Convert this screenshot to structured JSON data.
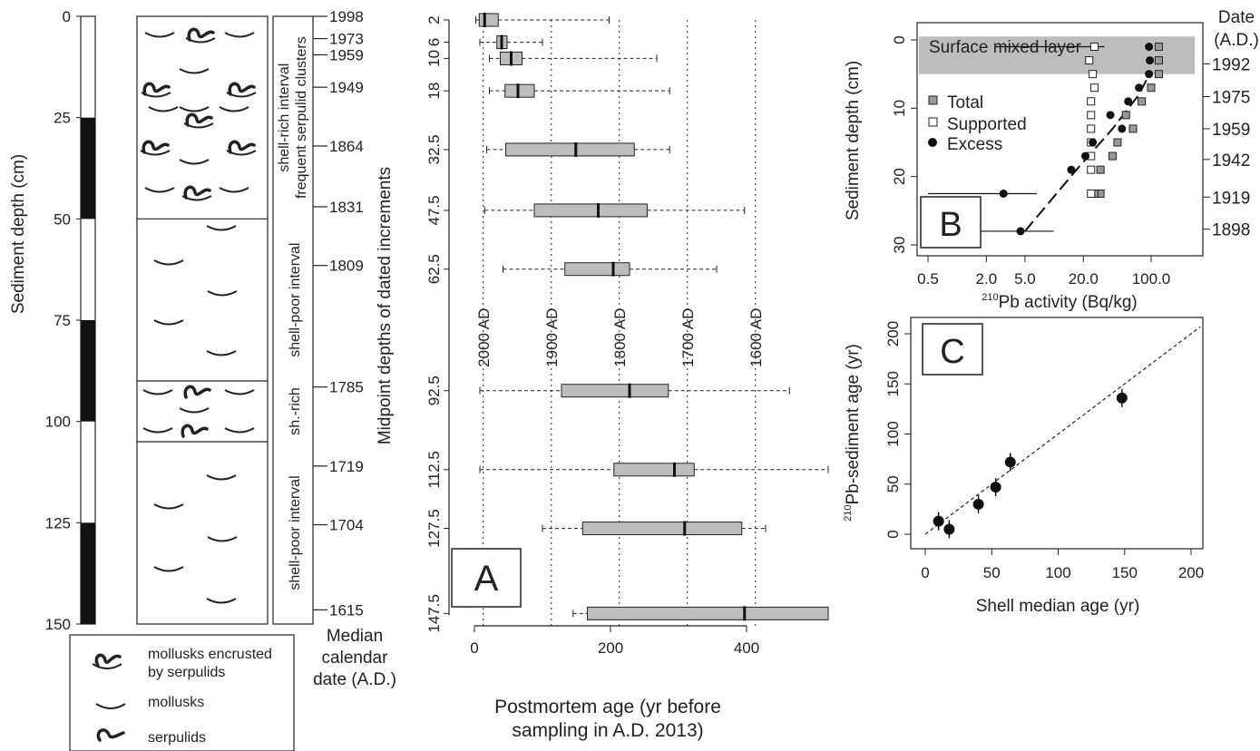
{
  "column": {
    "ylabel": "Sediment depth (cm)",
    "yticks": [
      0,
      25,
      50,
      75,
      100,
      125,
      150
    ],
    "ylim": [
      0,
      150
    ],
    "bar_black_ranges": [
      [
        25,
        50
      ],
      [
        75,
        100
      ],
      [
        125,
        150
      ]
    ],
    "intervals": [
      {
        "top": 0,
        "bottom": 50,
        "label1": "shell-rich interval",
        "label2": "frequent serpulid clusters"
      },
      {
        "top": 50,
        "bottom": 90,
        "label1": "shell-poor interval",
        "label2": ""
      },
      {
        "top": 90,
        "bottom": 105,
        "label1": "sh.-rich",
        "label2": ""
      },
      {
        "top": 105,
        "bottom": 150,
        "label1": "shell-poor interval",
        "label2": ""
      }
    ],
    "median_dates": [
      {
        "depth": 0,
        "date": "1998"
      },
      {
        "depth": 5.5,
        "date": "1973"
      },
      {
        "depth": 9.5,
        "date": "1959"
      },
      {
        "depth": 17.5,
        "date": "1949"
      },
      {
        "depth": 32,
        "date": "1864"
      },
      {
        "depth": 47,
        "date": "1831"
      },
      {
        "depth": 61.5,
        "date": "1809"
      },
      {
        "depth": 91.5,
        "date": "1785"
      },
      {
        "depth": 111,
        "date": "1719"
      },
      {
        "depth": 125.5,
        "date": "1704"
      },
      {
        "depth": 146.5,
        "date": "1615"
      }
    ],
    "date_axis_label1": "Median",
    "date_axis_label2": "calendar",
    "date_axis_label3": "date (A.D.)"
  },
  "legend": {
    "items": [
      {
        "icon": "encrusted-mollusk-icon",
        "label": "mollusks encrusted",
        "label2": "by serpulids"
      },
      {
        "icon": "mollusk-icon",
        "label": "mollusks",
        "label2": ""
      },
      {
        "icon": "serpulid-icon",
        "label": "serpulids",
        "label2": ""
      }
    ]
  },
  "chart_data": [
    {
      "panel": "A",
      "type": "box",
      "xlabel": "Postmortem age (yr before",
      "xlabel2": "sampling in A.D. 2013)",
      "ylabel": "Midpoint depths of dated increments",
      "xlim": [
        0,
        520
      ],
      "xticks": [
        0,
        200,
        400
      ],
      "reference_lines": [
        {
          "x": 13,
          "label": "2000 AD"
        },
        {
          "x": 113,
          "label": "1900 AD"
        },
        {
          "x": 213,
          "label": "1800 AD"
        },
        {
          "x": 313,
          "label": "1700 AD"
        },
        {
          "x": 413,
          "label": "1600 AD"
        }
      ],
      "boxes": [
        {
          "depth": "2",
          "pos": 0,
          "wlo": 2,
          "q1": 7,
          "median": 15,
          "q3": 35,
          "whi": 198
        },
        {
          "depth": "6",
          "pos": 5.5,
          "wlo": 8,
          "q1": 33,
          "median": 40,
          "q3": 48,
          "whi": 100
        },
        {
          "depth": "10",
          "pos": 9.5,
          "wlo": 22,
          "q1": 38,
          "median": 54,
          "q3": 70,
          "whi": 268
        },
        {
          "depth": "18",
          "pos": 17.5,
          "wlo": 22,
          "q1": 45,
          "median": 64,
          "q3": 88,
          "whi": 287
        },
        {
          "depth": "32.5",
          "pos": 32,
          "wlo": 18,
          "q1": 46,
          "median": 149,
          "q3": 235,
          "whi": 287
        },
        {
          "depth": "47.5",
          "pos": 47,
          "wlo": 15,
          "q1": 88,
          "median": 182,
          "q3": 254,
          "whi": 397
        },
        {
          "depth": "62.5",
          "pos": 61.5,
          "wlo": 42,
          "q1": 133,
          "median": 204,
          "q3": 228,
          "whi": 356
        },
        {
          "depth": "92.5",
          "pos": 91.5,
          "wlo": 8,
          "q1": 128,
          "median": 228,
          "q3": 285,
          "whi": 463
        },
        {
          "depth": "112.5",
          "pos": 111,
          "wlo": 8,
          "q1": 205,
          "median": 294,
          "q3": 323,
          "whi": 520
        },
        {
          "depth": "127.5",
          "pos": 125.5,
          "wlo": 100,
          "q1": 159,
          "median": 309,
          "q3": 393,
          "whi": 428
        },
        {
          "depth": "147.5",
          "pos": 146.5,
          "wlo": 145,
          "q1": 166,
          "median": 397,
          "q3": 520,
          "whi": 520
        }
      ],
      "panel_label": "A"
    },
    {
      "panel": "B",
      "type": "scatter",
      "xlabel": "210Pb activity (Bq/kg)",
      "xlabel_sup": "210",
      "xlabel_rest": "Pb activity (Bq/kg)",
      "ylabel": "Sediment depth (cm)",
      "x_scale": "log",
      "xticks": [
        "0.5",
        "2.0",
        "5.0",
        "20.0",
        "100.0"
      ],
      "xtick_values": [
        0.5,
        2,
        5,
        20,
        100
      ],
      "yticks": [
        0,
        10,
        20,
        30
      ],
      "ylim": [
        0,
        31
      ],
      "right_axis_label1": "Date",
      "right_axis_label2": "(A.D.)",
      "right_axis_ticks": [
        {
          "depth": 3.5,
          "date": "1992"
        },
        {
          "depth": 8.3,
          "date": "1975"
        },
        {
          "depth": 13.0,
          "date": "1959"
        },
        {
          "depth": 17.5,
          "date": "1942"
        },
        {
          "depth": 23.0,
          "date": "1919"
        },
        {
          "depth": 27.7,
          "date": "1898"
        }
      ],
      "shaded_band": {
        "label": "Surface mixed layer",
        "depth_from": -0.5,
        "depth_to": 5
      },
      "legend": [
        "Total",
        "Supported",
        "Excess"
      ],
      "series": [
        {
          "name": "Total",
          "points": [
            [
              120,
              1
            ],
            [
              120,
              3
            ],
            [
              120,
              5
            ],
            [
              100,
              7
            ],
            [
              80,
              9
            ],
            [
              55,
              11
            ],
            [
              65,
              13
            ],
            [
              45,
              15
            ],
            [
              40,
              17
            ],
            [
              30,
              19
            ],
            [
              30,
              22.5
            ],
            [
              26,
              22.5
            ]
          ]
        },
        {
          "name": "Supported",
          "points": [
            [
              26,
              1
            ],
            [
              23,
              3
            ],
            [
              25,
              5
            ],
            [
              26,
              7
            ],
            [
              24,
              9
            ],
            [
              24,
              11
            ],
            [
              24,
              13
            ],
            [
              24,
              15
            ],
            [
              24,
              17
            ],
            [
              24,
              19
            ],
            [
              24,
              22.5
            ]
          ]
        },
        {
          "name": "Excess",
          "points": [
            [
              95,
              1
            ],
            [
              97,
              3
            ],
            [
              95,
              5
            ],
            [
              75,
              7
            ],
            [
              58,
              9
            ],
            [
              38,
              11
            ],
            [
              50,
              13
            ],
            [
              25,
              15
            ],
            [
              21,
              17
            ],
            [
              15,
              19
            ],
            [
              3,
              22.5
            ],
            [
              4.5,
              28
            ]
          ]
        }
      ],
      "excess_error_bars": [
        [
          15,
          1
        ],
        [
          3,
          22.5
        ],
        [
          4.5,
          28
        ]
      ],
      "fit_line": [
        [
          5,
          28
        ],
        [
          17,
          19
        ],
        [
          40,
          13
        ],
        [
          75,
          8
        ],
        [
          100,
          4.5
        ]
      ],
      "panel_label": "B"
    },
    {
      "panel": "C",
      "type": "scatter",
      "xlabel": "Shell median age (yr)",
      "ylabel": "210Pb-sediment age (yr)",
      "ylabel_sup": "210",
      "ylabel_rest": "Pb-sediment age (yr)",
      "xlim": [
        0,
        210
      ],
      "ylim": [
        -8,
        210
      ],
      "xticks": [
        0,
        50,
        100,
        150,
        200
      ],
      "yticks": [
        0,
        50,
        100,
        150,
        200
      ],
      "points": [
        [
          10,
          13
        ],
        [
          18,
          5
        ],
        [
          40,
          30
        ],
        [
          53,
          47
        ],
        [
          64,
          72
        ],
        [
          148,
          136
        ]
      ],
      "reference_line": "1:1",
      "panel_label": "C"
    }
  ]
}
